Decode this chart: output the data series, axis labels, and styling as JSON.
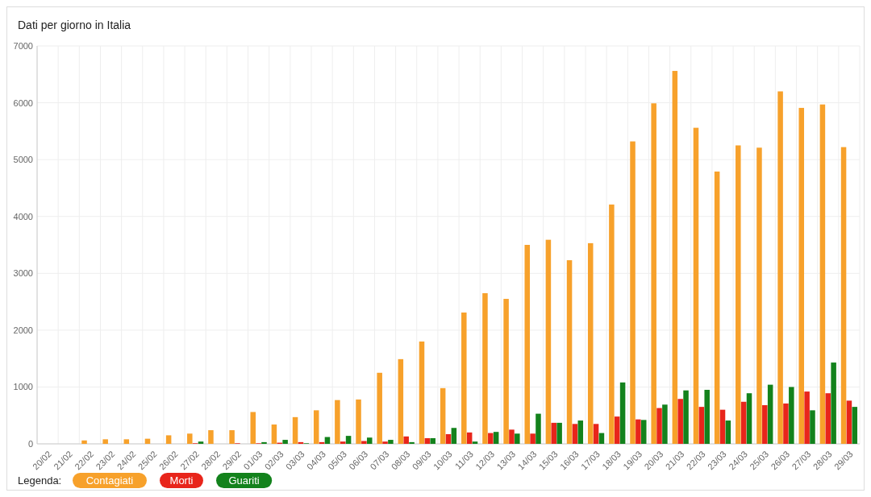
{
  "chart_data": {
    "type": "bar",
    "title": "Dati per giorno in Italia",
    "legend_title": "Legenda:",
    "categories": [
      "20/02",
      "21/02",
      "22/02",
      "23/02",
      "24/02",
      "25/02",
      "26/02",
      "27/02",
      "28/02",
      "29/02",
      "01/03",
      "02/03",
      "03/03",
      "04/03",
      "05/03",
      "06/03",
      "07/03",
      "08/03",
      "09/03",
      "10/03",
      "11/03",
      "12/03",
      "13/03",
      "14/03",
      "15/03",
      "16/03",
      "17/03",
      "18/03",
      "19/03",
      "20/03",
      "21/03",
      "22/03",
      "23/03",
      "24/03",
      "25/03",
      "26/03",
      "27/03",
      "28/03",
      "29/03"
    ],
    "series": [
      {
        "name": "Contagiati",
        "color": "#f7a12b",
        "values": [
          0,
          0,
          60,
          80,
          80,
          90,
          150,
          180,
          240,
          240,
          560,
          340,
          470,
          590,
          770,
          780,
          1250,
          1490,
          1800,
          980,
          2310,
          2650,
          2550,
          3500,
          3590,
          3230,
          3530,
          4210,
          5320,
          5990,
          6560,
          5560,
          4790,
          5250,
          5210,
          6200,
          5910,
          5970,
          5220
        ]
      },
      {
        "name": "Morti",
        "color": "#e8251b",
        "values": [
          0,
          0,
          0,
          0,
          0,
          0,
          0,
          10,
          0,
          10,
          10,
          20,
          30,
          30,
          40,
          50,
          40,
          130,
          100,
          170,
          200,
          190,
          250,
          180,
          370,
          350,
          350,
          480,
          430,
          630,
          790,
          650,
          600,
          740,
          680,
          710,
          920,
          890,
          760
        ]
      },
      {
        "name": "Guariti",
        "color": "#13821c",
        "values": [
          0,
          0,
          0,
          0,
          0,
          0,
          0,
          40,
          0,
          0,
          30,
          70,
          10,
          120,
          140,
          110,
          70,
          30,
          100,
          280,
          40,
          210,
          180,
          530,
          370,
          410,
          190,
          1080,
          420,
          690,
          940,
          950,
          410,
          890,
          1040,
          1000,
          590,
          1430,
          650
        ]
      }
    ],
    "ylim": [
      0,
      7000
    ],
    "yticks": [
      0,
      1000,
      2000,
      3000,
      4000,
      5000,
      6000,
      7000
    ],
    "grid": true,
    "legend": "bottom left"
  }
}
